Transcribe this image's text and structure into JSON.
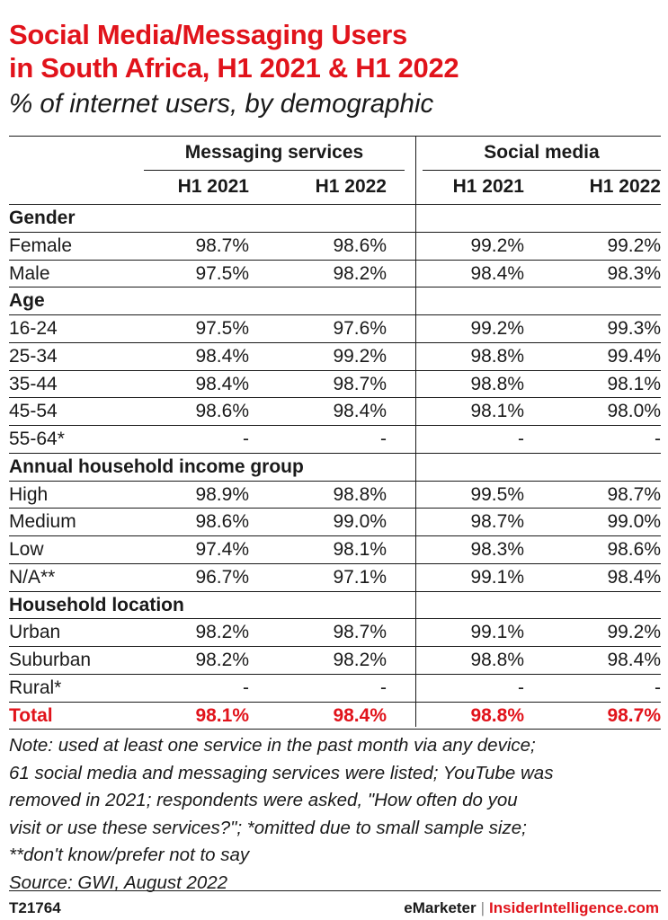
{
  "title_lines": [
    "Social Media/Messaging Users",
    "in South Africa, H1 2021 & H1 2022"
  ],
  "subtitle": "% of internet users, by demographic",
  "chart_data": {
    "type": "table",
    "title": "Social Media/Messaging Users in South Africa, H1 2021 & H1 2022",
    "subtitle": "% of internet users, by demographic",
    "column_groups": [
      "Messaging services",
      "Social media"
    ],
    "columns": [
      "H1 2021",
      "H1 2022",
      "H1 2021",
      "H1 2022"
    ],
    "sections": [
      {
        "name": "Gender",
        "rows": [
          {
            "label": "Female",
            "values": [
              "98.7%",
              "98.6%",
              "99.2%",
              "99.2%"
            ]
          },
          {
            "label": "Male",
            "values": [
              "97.5%",
              "98.2%",
              "98.4%",
              "98.3%"
            ]
          }
        ]
      },
      {
        "name": "Age",
        "rows": [
          {
            "label": "16-24",
            "values": [
              "97.5%",
              "97.6%",
              "99.2%",
              "99.3%"
            ]
          },
          {
            "label": "25-34",
            "values": [
              "98.4%",
              "99.2%",
              "98.8%",
              "99.4%"
            ]
          },
          {
            "label": "35-44",
            "values": [
              "98.4%",
              "98.7%",
              "98.8%",
              "98.1%"
            ]
          },
          {
            "label": "45-54",
            "values": [
              "98.6%",
              "98.4%",
              "98.1%",
              "98.0%"
            ]
          },
          {
            "label": "55-64*",
            "values": [
              "-",
              "-",
              "-",
              "-"
            ]
          }
        ]
      },
      {
        "name": "Annual household income group",
        "rows": [
          {
            "label": "High",
            "values": [
              "98.9%",
              "98.8%",
              "99.5%",
              "98.7%"
            ]
          },
          {
            "label": "Medium",
            "values": [
              "98.6%",
              "99.0%",
              "98.7%",
              "99.0%"
            ]
          },
          {
            "label": "Low",
            "values": [
              "97.4%",
              "98.1%",
              "98.3%",
              "98.6%"
            ]
          },
          {
            "label": "N/A**",
            "values": [
              "96.7%",
              "97.1%",
              "99.1%",
              "98.4%"
            ]
          }
        ]
      },
      {
        "name": "Household location",
        "rows": [
          {
            "label": "Urban",
            "values": [
              "98.2%",
              "98.7%",
              "99.1%",
              "99.2%"
            ]
          },
          {
            "label": "Suburban",
            "values": [
              "98.2%",
              "98.2%",
              "98.8%",
              "98.4%"
            ]
          },
          {
            "label": "Rural*",
            "values": [
              "-",
              "-",
              "-",
              "-"
            ]
          }
        ]
      }
    ],
    "total": {
      "label": "Total",
      "values": [
        "98.1%",
        "98.4%",
        "98.8%",
        "98.7%"
      ]
    }
  },
  "note_lines": [
    "Note: used at least one service in the past month via any device;",
    "61 social media and messaging services were listed; YouTube was",
    "removed in 2021; respondents were asked, \"How often do you",
    "visit or use these services?\"; *omitted due to small sample size;",
    "**don't know/prefer not to say",
    "Source: GWI, August 2022"
  ],
  "footer": {
    "id": "T21764",
    "brand1": "eMarketer",
    "separator": "|",
    "brand2": "InsiderIntelligence.com"
  },
  "colors": {
    "accent": "#e1131b",
    "text": "#1a1a1a"
  }
}
